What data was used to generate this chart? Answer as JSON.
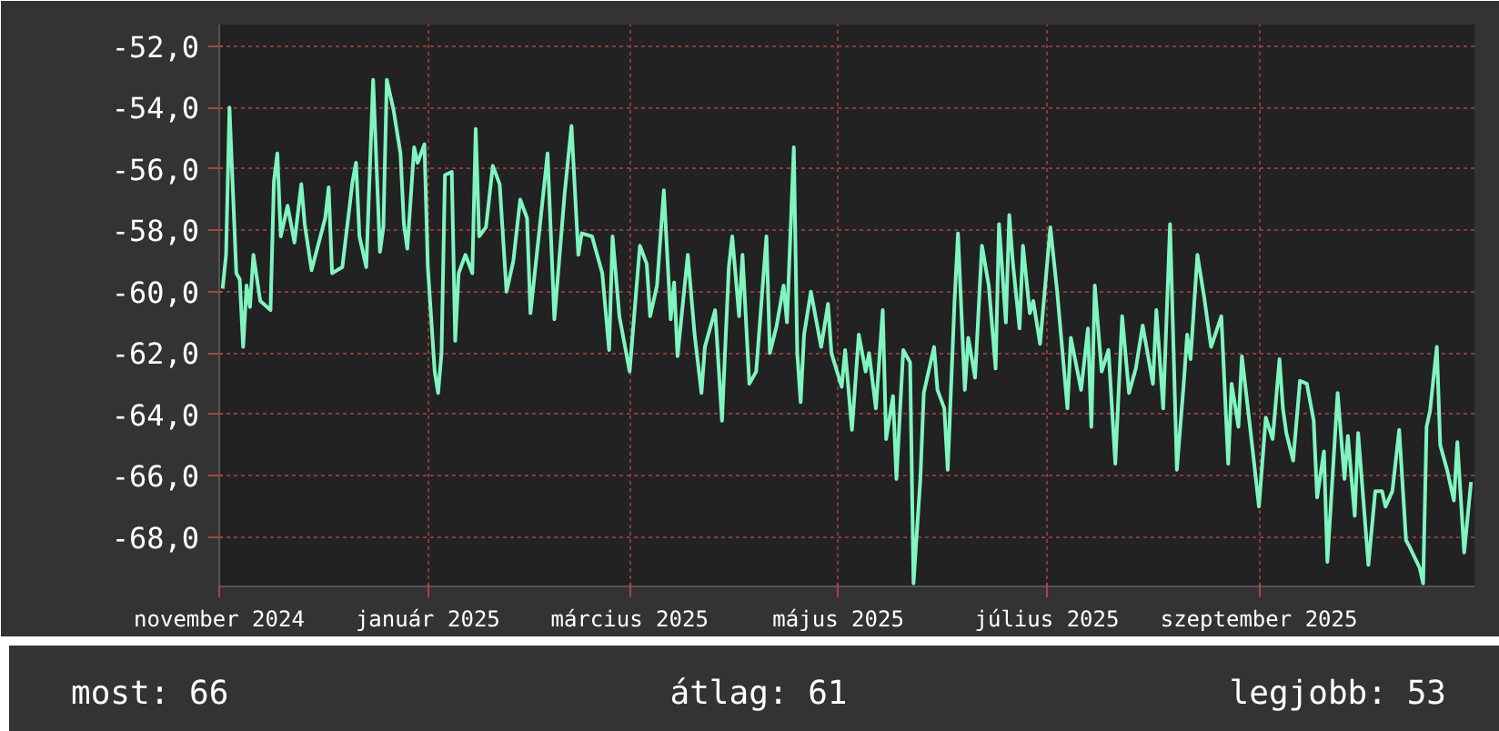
{
  "chart_data": {
    "type": "line",
    "grid": true,
    "marker": "none",
    "line_style": "solid",
    "xlim": [
      "2024-11-01",
      "2025-11-03"
    ],
    "ylim": [
      -69.6,
      -51.3
    ],
    "yticks": [
      {
        "value": -52,
        "label": "-52,0"
      },
      {
        "value": -54,
        "label": "-54,0"
      },
      {
        "value": -56,
        "label": "-56,0"
      },
      {
        "value": -58,
        "label": "-58,0"
      },
      {
        "value": -60,
        "label": "-60,0"
      },
      {
        "value": -62,
        "label": "-62,0"
      },
      {
        "value": -64,
        "label": "-64,0"
      },
      {
        "value": -66,
        "label": "-66,0"
      },
      {
        "value": -68,
        "label": "-68,0"
      }
    ],
    "xticks": [
      {
        "value": "2024-11-01",
        "label": "november 2024"
      },
      {
        "value": "2025-01-01",
        "label": "január 2025"
      },
      {
        "value": "2025-03-01",
        "label": "március 2025"
      },
      {
        "value": "2025-05-01",
        "label": "május 2025"
      },
      {
        "value": "2025-07-01",
        "label": "július 2025"
      },
      {
        "value": "2025-09-01",
        "label": "szeptember 2025"
      }
    ],
    "annotations": [
      "most: 66",
      "átlag: 61",
      "legjobb: 53"
    ],
    "x": [
      "2024-11-02",
      "2024-11-03",
      "2024-11-04",
      "2024-11-05",
      "2024-11-06",
      "2024-11-07",
      "2024-11-08",
      "2024-11-09",
      "2024-11-10",
      "2024-11-11",
      "2024-11-13",
      "2024-11-16",
      "2024-11-17",
      "2024-11-18",
      "2024-11-19",
      "2024-11-21",
      "2024-11-23",
      "2024-11-25",
      "2024-11-26",
      "2024-11-28",
      "2024-12-02",
      "2024-12-03",
      "2024-12-04",
      "2024-12-07",
      "2024-12-10",
      "2024-12-11",
      "2024-12-12",
      "2024-12-14",
      "2024-12-16",
      "2024-12-18",
      "2024-12-19",
      "2024-12-20",
      "2024-12-22",
      "2024-12-24",
      "2024-12-25",
      "2024-12-26",
      "2024-12-28",
      "2024-12-29",
      "2024-12-31",
      "2025-01-01",
      "2025-01-03",
      "2025-01-04",
      "2025-01-05",
      "2025-01-06",
      "2025-01-08",
      "2025-01-09",
      "2025-01-10",
      "2025-01-12",
      "2025-01-14",
      "2025-01-15",
      "2025-01-16",
      "2025-01-18",
      "2025-01-20",
      "2025-01-22",
      "2025-01-24",
      "2025-01-26",
      "2025-01-28",
      "2025-01-30",
      "2025-01-31",
      "2025-02-03",
      "2025-02-05",
      "2025-02-07",
      "2025-02-10",
      "2025-02-12",
      "2025-02-14",
      "2025-02-15",
      "2025-02-18",
      "2025-02-21",
      "2025-02-23",
      "2025-02-24",
      "2025-02-26",
      "2025-03-01",
      "2025-03-04",
      "2025-03-06",
      "2025-03-07",
      "2025-03-09",
      "2025-03-11",
      "2025-03-13",
      "2025-03-14",
      "2025-03-15",
      "2025-03-18",
      "2025-03-20",
      "2025-03-22",
      "2025-03-23",
      "2025-03-26",
      "2025-03-28",
      "2025-03-30",
      "2025-03-31",
      "2025-04-02",
      "2025-04-03",
      "2025-04-05",
      "2025-04-07",
      "2025-04-10",
      "2025-04-11",
      "2025-04-13",
      "2025-04-15",
      "2025-04-16",
      "2025-04-18",
      "2025-04-19",
      "2025-04-20",
      "2025-04-21",
      "2025-04-23",
      "2025-04-26",
      "2025-04-28",
      "2025-04-29",
      "2025-05-02",
      "2025-05-03",
      "2025-05-05",
      "2025-05-07",
      "2025-05-09",
      "2025-05-10",
      "2025-05-12",
      "2025-05-14",
      "2025-05-15",
      "2025-05-17",
      "2025-05-18",
      "2025-05-20",
      "2025-05-22",
      "2025-05-23",
      "2025-05-25",
      "2025-05-26",
      "2025-05-29",
      "2025-05-30",
      "2025-06-01",
      "2025-06-02",
      "2025-06-04",
      "2025-06-05",
      "2025-06-07",
      "2025-06-08",
      "2025-06-10",
      "2025-06-12",
      "2025-06-14",
      "2025-06-16",
      "2025-06-17",
      "2025-06-19",
      "2025-06-20",
      "2025-06-21",
      "2025-06-23",
      "2025-06-24",
      "2025-06-26",
      "2025-06-27",
      "2025-06-29",
      "2025-07-02",
      "2025-07-04",
      "2025-07-07",
      "2025-07-08",
      "2025-07-11",
      "2025-07-13",
      "2025-07-14",
      "2025-07-15",
      "2025-07-17",
      "2025-07-19",
      "2025-07-21",
      "2025-07-23",
      "2025-07-25",
      "2025-07-27",
      "2025-07-29",
      "2025-08-01",
      "2025-08-02",
      "2025-08-04",
      "2025-08-06",
      "2025-08-08",
      "2025-08-10",
      "2025-08-11",
      "2025-08-12",
      "2025-08-14",
      "2025-08-16",
      "2025-08-18",
      "2025-08-21",
      "2025-08-23",
      "2025-08-24",
      "2025-08-26",
      "2025-08-27",
      "2025-08-30",
      "2025-09-01",
      "2025-09-03",
      "2025-09-05",
      "2025-09-07",
      "2025-09-08",
      "2025-09-09",
      "2025-09-11",
      "2025-09-13",
      "2025-09-15",
      "2025-09-17",
      "2025-09-18",
      "2025-09-20",
      "2025-09-21",
      "2025-09-24",
      "2025-09-26",
      "2025-09-27",
      "2025-09-29",
      "2025-09-30",
      "2025-10-03",
      "2025-10-05",
      "2025-10-07",
      "2025-10-08",
      "2025-10-10",
      "2025-10-12",
      "2025-10-14",
      "2025-10-15",
      "2025-10-18",
      "2025-10-19",
      "2025-10-20",
      "2025-10-21",
      "2025-10-23",
      "2025-10-24",
      "2025-10-26",
      "2025-10-28",
      "2025-10-29",
      "2025-10-31",
      "2025-11-02"
    ],
    "series": [
      {
        "color": "#7ff5c0",
        "values": [
          -59.9,
          -58.8,
          -54.0,
          -56.7,
          -59.4,
          -59.6,
          -61.8,
          -59.8,
          -60.5,
          -58.8,
          -60.3,
          -60.6,
          -56.4,
          -55.5,
          -58.2,
          -57.2,
          -58.4,
          -56.5,
          -57.8,
          -59.3,
          -57.6,
          -56.6,
          -59.4,
          -59.2,
          -56.4,
          -55.8,
          -58.2,
          -59.2,
          -53.1,
          -58.7,
          -57.9,
          -53.1,
          -54.1,
          -55.5,
          -57.8,
          -58.6,
          -55.3,
          -55.8,
          -55.2,
          -59.2,
          -62.6,
          -63.3,
          -62.0,
          -56.2,
          -56.1,
          -61.6,
          -59.4,
          -58.8,
          -59.4,
          -54.7,
          -58.2,
          -57.9,
          -55.9,
          -56.5,
          -60.0,
          -59.0,
          -57.0,
          -57.6,
          -60.7,
          -57.6,
          -55.5,
          -60.9,
          -56.8,
          -54.6,
          -58.8,
          -58.1,
          -58.2,
          -59.4,
          -61.9,
          -58.2,
          -60.8,
          -62.6,
          -58.5,
          -59.1,
          -60.8,
          -59.8,
          -56.7,
          -60.9,
          -59.7,
          -62.1,
          -58.8,
          -61.4,
          -63.3,
          -61.8,
          -60.6,
          -64.2,
          -59.2,
          -58.2,
          -60.8,
          -58.8,
          -63.0,
          -62.6,
          -58.2,
          -62.0,
          -61.1,
          -59.8,
          -61.0,
          -55.3,
          -62.0,
          -63.6,
          -61.4,
          -60.0,
          -61.8,
          -60.4,
          -62.0,
          -63.1,
          -61.9,
          -64.5,
          -61.4,
          -62.6,
          -62.0,
          -63.8,
          -60.6,
          -64.8,
          -63.4,
          -66.1,
          -61.9,
          -62.3,
          -69.5,
          -66.1,
          -63.3,
          -61.8,
          -63.2,
          -63.8,
          -65.8,
          -60.3,
          -58.1,
          -63.2,
          -61.5,
          -62.8,
          -58.5,
          -59.8,
          -62.5,
          -57.8,
          -61.0,
          -57.5,
          -59.0,
          -61.2,
          -58.5,
          -60.7,
          -60.3,
          -61.7,
          -57.9,
          -60.0,
          -63.8,
          -61.5,
          -63.2,
          -61.2,
          -64.4,
          -59.8,
          -62.6,
          -61.9,
          -65.6,
          -60.8,
          -63.3,
          -62.5,
          -61.1,
          -63.0,
          -60.6,
          -63.8,
          -57.8,
          -65.8,
          -63.0,
          -61.4,
          -62.2,
          -58.8,
          -60.2,
          -61.8,
          -60.8,
          -65.6,
          -63.0,
          -64.4,
          -62.1,
          -65.0,
          -67.0,
          -64.1,
          -64.8,
          -62.2,
          -63.8,
          -64.6,
          -65.5,
          -62.9,
          -63.0,
          -64.2,
          -66.7,
          -65.2,
          -68.8,
          -63.3,
          -66.1,
          -64.7,
          -67.3,
          -64.6,
          -68.9,
          -66.5,
          -66.5,
          -67.0,
          -66.5,
          -64.5,
          -68.1,
          -68.3,
          -69.0,
          -69.5,
          -64.4,
          -63.9,
          -61.8,
          -65.0,
          -65.8,
          -66.8,
          -64.9,
          -68.5,
          -66.2
        ]
      }
    ]
  }
}
